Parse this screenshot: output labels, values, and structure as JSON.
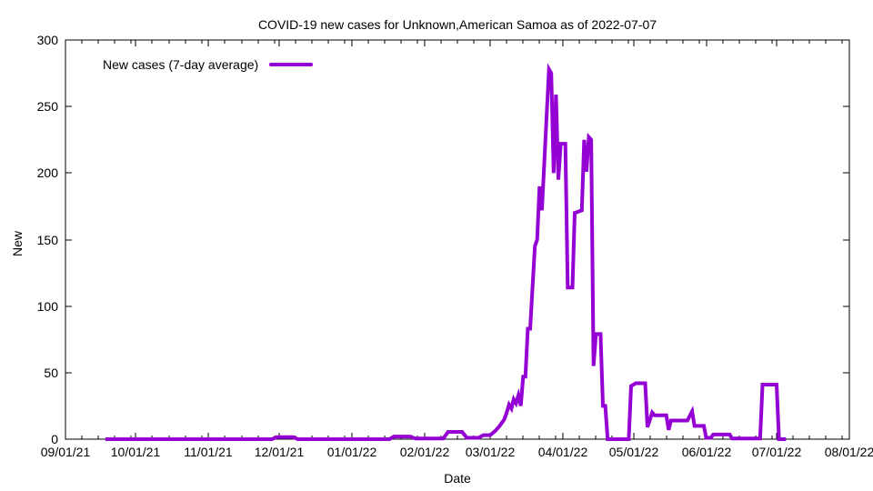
{
  "chart_data": {
    "type": "line",
    "title": "COVID-19 new cases for Unknown,American Samoa as of 2022-07-07",
    "xlabel": "Date",
    "ylabel": "New",
    "legend_label": "New cases (7-day average)",
    "legend_position": "top-left-inside",
    "line_color": "#9400d3",
    "background_color": "#ffffff",
    "grid": false,
    "ylim": [
      0,
      300
    ],
    "y_ticks": [
      0,
      50,
      100,
      150,
      200,
      250,
      300
    ],
    "x_range": [
      "09/01/21",
      "08/01/22"
    ],
    "x_ticks": [
      "09/01/21",
      "10/01/21",
      "11/01/21",
      "12/01/21",
      "01/01/22",
      "02/01/22",
      "03/01/22",
      "04/01/22",
      "05/01/22",
      "06/01/22",
      "07/01/22",
      "08/01/22"
    ],
    "points": [
      [
        "09/18/21",
        0
      ],
      [
        "10/15/21",
        0
      ],
      [
        "11/28/21",
        0
      ],
      [
        "11/30/21",
        1.5
      ],
      [
        "12/07/21",
        1.5
      ],
      [
        "12/09/21",
        0
      ],
      [
        "01/17/22",
        0
      ],
      [
        "01/19/22",
        2
      ],
      [
        "01/26/22",
        2
      ],
      [
        "01/28/22",
        0.5
      ],
      [
        "02/09/22",
        0.5
      ],
      [
        "02/11/22",
        5.5
      ],
      [
        "02/17/22",
        5.5
      ],
      [
        "02/19/22",
        1
      ],
      [
        "02/24/22",
        1
      ],
      [
        "02/26/22",
        3
      ],
      [
        "03/01/22",
        3
      ],
      [
        "03/03/22",
        6
      ],
      [
        "03/05/22",
        10
      ],
      [
        "03/07/22",
        15
      ],
      [
        "03/08/22",
        20
      ],
      [
        "03/09/22",
        26
      ],
      [
        "03/10/22",
        23
      ],
      [
        "03/11/22",
        30
      ],
      [
        "03/12/22",
        27
      ],
      [
        "03/13/22",
        33
      ],
      [
        "03/14/22",
        25
      ],
      [
        "03/15/22",
        47
      ],
      [
        "03/16/22",
        47
      ],
      [
        "03/17/22",
        83
      ],
      [
        "03/18/22",
        83
      ],
      [
        "03/20/22",
        145
      ],
      [
        "03/21/22",
        150
      ],
      [
        "03/22/22",
        190
      ],
      [
        "03/23/22",
        172
      ],
      [
        "03/26/22",
        278
      ],
      [
        "03/27/22",
        275
      ],
      [
        "03/28/22",
        200
      ],
      [
        "03/29/22",
        259
      ],
      [
        "03/30/22",
        195
      ],
      [
        "03/31/22",
        222
      ],
      [
        "04/02/22",
        222
      ],
      [
        "04/03/22",
        114
      ],
      [
        "04/05/22",
        114
      ],
      [
        "04/06/22",
        170
      ],
      [
        "04/09/22",
        172
      ],
      [
        "04/10/22",
        225
      ],
      [
        "04/11/22",
        201
      ],
      [
        "04/12/22",
        227
      ],
      [
        "04/13/22",
        225
      ],
      [
        "04/14/22",
        55
      ],
      [
        "04/15/22",
        79
      ],
      [
        "04/17/22",
        79
      ],
      [
        "04/18/22",
        25
      ],
      [
        "04/19/22",
        25
      ],
      [
        "04/20/22",
        0
      ],
      [
        "04/29/22",
        0
      ],
      [
        "04/30/22",
        40
      ],
      [
        "05/02/22",
        42
      ],
      [
        "05/06/22",
        42
      ],
      [
        "05/07/22",
        9
      ],
      [
        "05/09/22",
        20
      ],
      [
        "05/10/22",
        18
      ],
      [
        "05/15/22",
        18
      ],
      [
        "05/16/22",
        7
      ],
      [
        "05/17/22",
        14
      ],
      [
        "05/24/22",
        14
      ],
      [
        "05/26/22",
        21
      ],
      [
        "05/27/22",
        10
      ],
      [
        "05/31/22",
        10
      ],
      [
        "06/01/22",
        1
      ],
      [
        "06/03/22",
        1
      ],
      [
        "06/04/22",
        3.5
      ],
      [
        "06/11/22",
        3.5
      ],
      [
        "06/12/22",
        0.5
      ],
      [
        "06/24/22",
        0.5
      ],
      [
        "06/25/22",
        41
      ],
      [
        "07/01/22",
        41
      ],
      [
        "07/02/22",
        0
      ],
      [
        "07/05/22",
        0
      ]
    ]
  }
}
